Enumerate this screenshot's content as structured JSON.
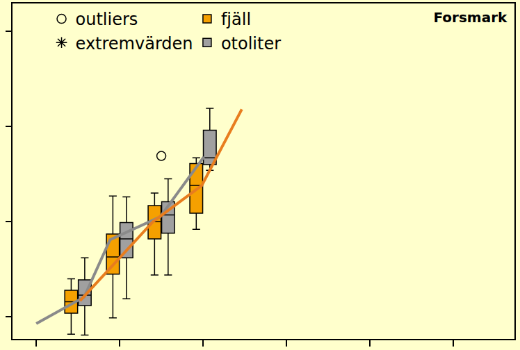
{
  "chart_data": {
    "type": "box",
    "title": "Forsmark",
    "xlim": [
      -0.57,
      11.47
    ],
    "xticks": [
      0,
      2,
      4,
      6,
      8,
      10
    ],
    "ylim": [
      7.7,
      42.9
    ],
    "yticks": [
      10,
      20,
      30,
      40
    ],
    "tick_labels": false,
    "legend": "top left",
    "series": [
      {
        "name": "outliers",
        "type": "scatter",
        "marker": "circle-open",
        "color": "#000000",
        "x": [
          3
        ],
        "values": [
          26.9
        ]
      },
      {
        "name": "fjäll",
        "type": "box",
        "color": "#f5a000",
        "x": [
          1,
          2,
          3,
          4
        ],
        "lowerfence": [
          8.2,
          9.9,
          14.4,
          19.2
        ],
        "q1": [
          10.4,
          14.5,
          18.2,
          20.9
        ],
        "median": [
          11.6,
          16.3,
          20.0,
          23.8
        ],
        "q3": [
          12.8,
          18.7,
          21.7,
          26.1
        ],
        "upperfence": [
          14.0,
          22.7,
          23.0,
          26.7
        ]
      },
      {
        "name": "extremvärden",
        "type": "scatter",
        "marker": "asterisk-open",
        "color": "#000000",
        "x": [],
        "values": []
      },
      {
        "name": "otoliter",
        "type": "box",
        "color": "#a0a0a0",
        "x": [
          1,
          2,
          3,
          4
        ],
        "lowerfence": [
          8.1,
          11.9,
          14.4,
          25.4
        ],
        "q1": [
          11.2,
          16.2,
          18.8,
          26.0
        ],
        "median": [
          12.3,
          18.2,
          20.7,
          26.7
        ],
        "q3": [
          13.9,
          19.9,
          22.1,
          29.6
        ],
        "upperfence": [
          16.2,
          22.6,
          24.5,
          31.9
        ]
      },
      {
        "type": "line",
        "color": "#8a8a8a",
        "x": [
          0,
          1.15,
          1.77,
          2.97,
          4.02
        ],
        "values": [
          9.3,
          12.1,
          18.1,
          20.5,
          26.8
        ]
      },
      {
        "type": "line",
        "color": "#e87d1e",
        "x": [
          1.05,
          2.8,
          3.97,
          4.93
        ],
        "values": [
          11.7,
          20.0,
          23.8,
          31.8
        ]
      }
    ]
  }
}
